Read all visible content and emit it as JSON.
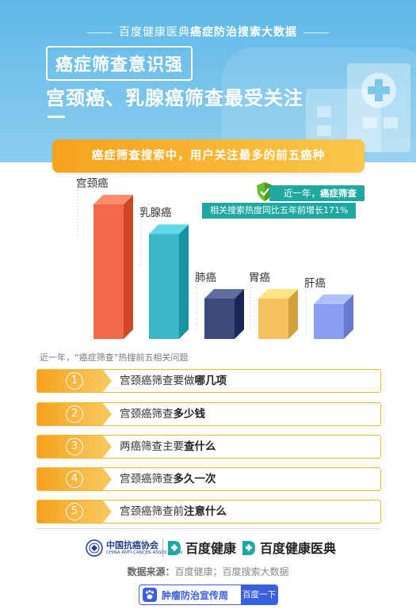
{
  "header": {
    "brand_prefix": "百度健康医典",
    "brand_bold": "癌症防治搜索大数据",
    "title_boxed": "癌症筛查意识强",
    "title_line2": "宫颈癌、乳腺癌筛查最受关注"
  },
  "banner": {
    "text": "癌症筛查搜索中，用户关注最多的前五癌种"
  },
  "notes": {
    "line1_prefix": "近一年，",
    "line1_bold": "癌症筛查",
    "line2": "相关搜索热度同比五年前增长171%"
  },
  "chart_data": {
    "type": "bar",
    "title": "癌症筛查搜索中，用户关注最多的前五癌种",
    "categories": [
      "宫颈癌",
      "乳腺癌",
      "肺癌",
      "胃癌",
      "肝癌"
    ],
    "values": [
      100,
      78,
      30,
      30,
      26
    ],
    "value_note": "relative bar heights estimated; no numeric axis shown",
    "colors": [
      "#f06a48",
      "#3cb6c5",
      "#3b4a7a",
      "#f7c160",
      "#8b9df0"
    ]
  },
  "questions": {
    "caption": "近一年，“癌症筛查”热搜前五相关问题",
    "items": [
      {
        "num": "1",
        "prefix": "宫颈癌筛查要做",
        "bold": "哪几项"
      },
      {
        "num": "2",
        "prefix": "宫颈癌筛查",
        "bold": "多少钱"
      },
      {
        "num": "3",
        "prefix": "两癌筛查主要",
        "bold": "查什么"
      },
      {
        "num": "4",
        "prefix": "宫颈癌筛查",
        "bold": "多久一次"
      },
      {
        "num": "5",
        "prefix": "宫颈癌筛查前",
        "bold": "注意什么"
      }
    ]
  },
  "footer": {
    "assoc_name": "中国抗癌协会",
    "assoc_en": "CHINA ANTI-CANCER ASSOCIATION",
    "logo1": "百度健康",
    "logo2": "百度健康医典",
    "source_label": "数据来源：",
    "source_text": "百度健康；百度搜索大数据",
    "week_text": "肿瘤防治宣传周",
    "week_button": "百度一下"
  },
  "colors": {
    "header_blue": "#6bbfe9",
    "accent_orange": "#f5a21c",
    "note_teal": "#1fa8a2",
    "baidu_blue": "#3a5fe0"
  }
}
